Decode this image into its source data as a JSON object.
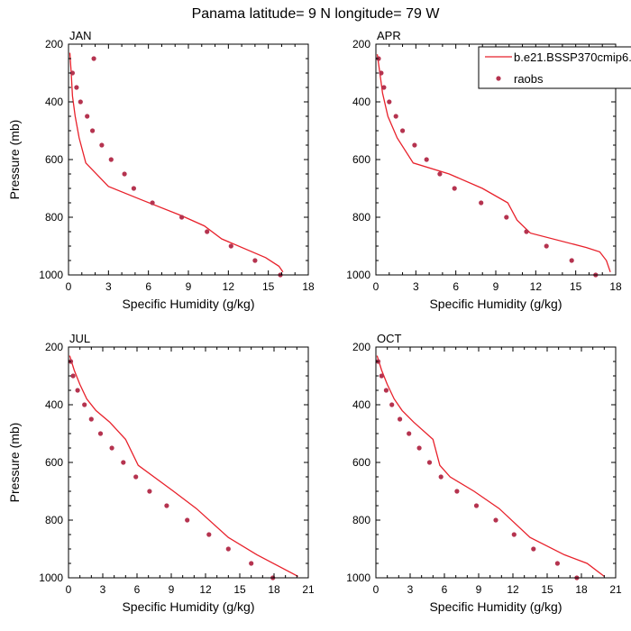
{
  "figure": {
    "title": "Panama  latitude= 9 N longitude= 79 W"
  },
  "legend": {
    "model_label": "b.e21.BSSP370cmip6.",
    "obs_label": "raobs"
  },
  "colors": {
    "model_line": "#e8212b",
    "obs_marker": "#b5334f",
    "axis": "#000000"
  },
  "chart_data": [
    {
      "type": "line",
      "title": "JAN",
      "xlabel": "Specific Humidity (g/kg)",
      "ylabel": "Pressure (mb)",
      "xlim": [
        0,
        18
      ],
      "ylim": [
        1000,
        200
      ],
      "y_reversed": true,
      "xticks": [
        0,
        3,
        6,
        9,
        12,
        15,
        18
      ],
      "yticks": [
        200,
        400,
        600,
        800,
        1000
      ],
      "series": [
        {
          "name": "b.e21.BSSP370cmip6.",
          "style": "line",
          "x": [
            0.1,
            0.2,
            0.3,
            0.5,
            0.8,
            1.3,
            3.0,
            5.5,
            8.5,
            10.2,
            11.5,
            14.8,
            15.8,
            16.1
          ],
          "y": [
            230,
            300,
            380,
            450,
            525,
            612,
            693,
            740,
            795,
            830,
            875,
            940,
            970,
            990
          ]
        },
        {
          "name": "raobs",
          "style": "scatter",
          "x": [
            1.9,
            0.3,
            0.6,
            0.9,
            1.4,
            1.8,
            2.5,
            3.2,
            4.2,
            4.9,
            6.3,
            8.5,
            10.4,
            12.2,
            14.0,
            15.9
          ],
          "y": [
            250,
            300,
            350,
            400,
            450,
            500,
            550,
            600,
            650,
            700,
            750,
            800,
            850,
            900,
            950,
            1000
          ]
        }
      ]
    },
    {
      "type": "line",
      "title": "APR",
      "xlabel": "Specific Humidity (g/kg)",
      "ylabel": "",
      "xlim": [
        0,
        18
      ],
      "ylim": [
        1000,
        200
      ],
      "y_reversed": true,
      "xticks": [
        0,
        3,
        6,
        9,
        12,
        15,
        18
      ],
      "yticks": [
        200,
        400,
        600,
        800,
        1000
      ],
      "series": [
        {
          "name": "b.e21.BSSP370cmip6.",
          "style": "line",
          "x": [
            0.1,
            0.3,
            0.5,
            0.9,
            1.6,
            2.8,
            5.5,
            8.0,
            9.9,
            10.6,
            11.6,
            15.8,
            16.8,
            17.3,
            17.6
          ],
          "y": [
            235,
            300,
            370,
            450,
            525,
            612,
            650,
            700,
            750,
            810,
            855,
            905,
            920,
            950,
            990
          ]
        },
        {
          "name": "raobs",
          "style": "scatter",
          "x": [
            0.2,
            0.4,
            0.6,
            1.0,
            1.5,
            2.0,
            2.9,
            3.8,
            4.8,
            5.9,
            7.9,
            9.8,
            11.3,
            12.8,
            14.7,
            16.5
          ],
          "y": [
            250,
            300,
            350,
            400,
            450,
            500,
            550,
            600,
            650,
            700,
            750,
            800,
            850,
            900,
            950,
            1000
          ]
        }
      ]
    },
    {
      "type": "line",
      "title": "JUL",
      "xlabel": "Specific Humidity (g/kg)",
      "ylabel": "Pressure (mb)",
      "xlim": [
        0,
        21
      ],
      "ylim": [
        1000,
        200
      ],
      "y_reversed": true,
      "xticks": [
        0,
        3,
        6,
        9,
        12,
        15,
        18,
        21
      ],
      "yticks": [
        200,
        400,
        600,
        800,
        1000
      ],
      "series": [
        {
          "name": "b.e21.BSSP370cmip6.",
          "style": "line",
          "x": [
            0.1,
            0.5,
            1.0,
            1.6,
            2.4,
            3.6,
            5.0,
            6.1,
            9.2,
            11.2,
            14.0,
            16.5,
            20.1
          ],
          "y": [
            230,
            280,
            330,
            380,
            420,
            460,
            520,
            610,
            700,
            760,
            860,
            920,
            995
          ]
        },
        {
          "name": "raobs",
          "style": "scatter",
          "x": [
            0.2,
            0.4,
            0.8,
            1.4,
            2.0,
            2.8,
            3.8,
            4.8,
            5.9,
            7.1,
            8.6,
            10.4,
            12.3,
            14.0,
            16.0,
            17.9
          ],
          "y": [
            250,
            300,
            350,
            400,
            450,
            500,
            550,
            600,
            650,
            700,
            750,
            800,
            850,
            900,
            950,
            1000
          ]
        }
      ]
    },
    {
      "type": "line",
      "title": "OCT",
      "xlabel": "Specific Humidity (g/kg)",
      "ylabel": "",
      "xlim": [
        0,
        21
      ],
      "ylim": [
        1000,
        200
      ],
      "y_reversed": true,
      "xticks": [
        0,
        3,
        6,
        9,
        12,
        15,
        18,
        21
      ],
      "yticks": [
        200,
        400,
        600,
        800,
        1000
      ],
      "series": [
        {
          "name": "b.e21.BSSP370cmip6.",
          "style": "line",
          "x": [
            0.1,
            0.5,
            1.0,
            1.6,
            2.3,
            3.3,
            5.0,
            5.6,
            6.5,
            8.6,
            10.8,
            13.5,
            16.5,
            18.5,
            20.0
          ],
          "y": [
            230,
            280,
            330,
            380,
            420,
            460,
            520,
            610,
            650,
            700,
            760,
            860,
            920,
            950,
            995
          ]
        },
        {
          "name": "raobs",
          "style": "scatter",
          "x": [
            0.2,
            0.5,
            0.9,
            1.4,
            2.1,
            2.9,
            3.8,
            4.7,
            5.7,
            7.1,
            8.8,
            10.5,
            12.1,
            13.8,
            15.9,
            17.6
          ],
          "y": [
            250,
            300,
            350,
            400,
            450,
            500,
            550,
            600,
            650,
            700,
            750,
            800,
            850,
            900,
            950,
            1000
          ]
        }
      ]
    }
  ]
}
